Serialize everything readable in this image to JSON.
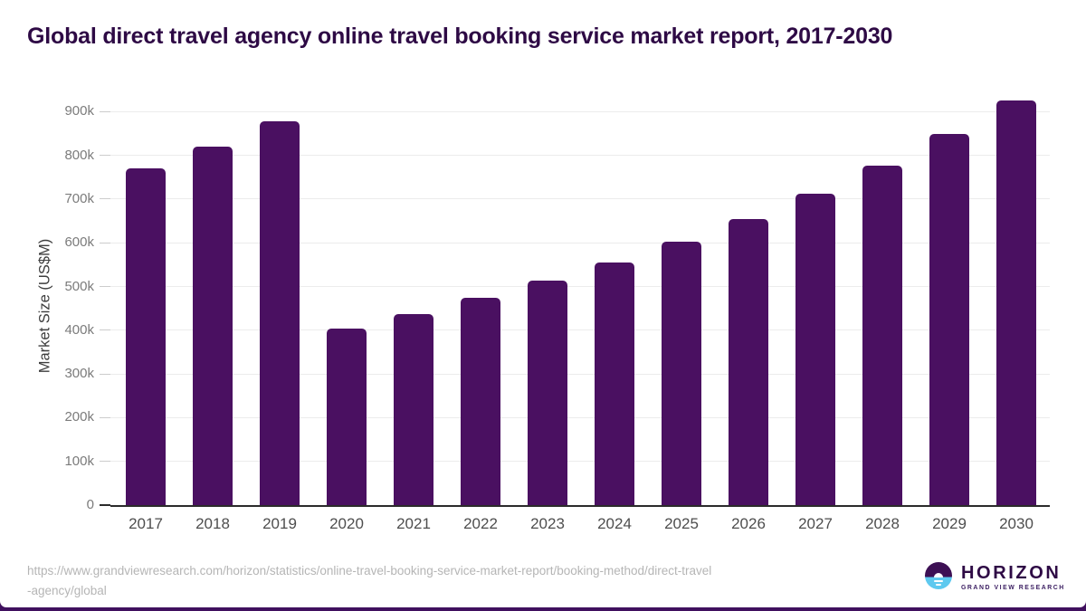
{
  "page": {
    "title": "Global direct travel agency online travel booking service market report, 2017-2030"
  },
  "chart_data": {
    "type": "bar",
    "title": "Global direct travel agency online travel booking service market report, 2017-2030",
    "xlabel": "",
    "ylabel": "Market Size (US$M)",
    "categories": [
      "2017",
      "2018",
      "2019",
      "2020",
      "2021",
      "2022",
      "2023",
      "2024",
      "2025",
      "2026",
      "2027",
      "2028",
      "2029",
      "2030"
    ],
    "values": [
      770000,
      819000,
      878000,
      403000,
      437000,
      474000,
      513000,
      555000,
      603000,
      655000,
      713000,
      777000,
      848000,
      925000
    ],
    "ylim": [
      0,
      938000
    ],
    "ytick_step": 100000,
    "ytick_labels": [
      "0",
      "100k",
      "200k",
      "300k",
      "400k",
      "500k",
      "600k",
      "700k",
      "800k",
      "900k"
    ],
    "grid": "horizontal",
    "legend_position": "none",
    "bar_color": "#4a1061"
  },
  "footer": {
    "source_url_line1": "https://www.grandviewresearch.com/horizon/statistics/online-travel-booking-service-market-report/booking-method/direct-travel",
    "source_url_line2": "-agency/global",
    "logo_name": "HORIZON",
    "logo_subtitle": "GRAND VIEW RESEARCH"
  },
  "colors": {
    "bar": "#4a1061",
    "title_text": "#2e0a45",
    "axis_line": "#2b2b2b",
    "gridline": "#ececec",
    "tick_text": "#7b7b7b",
    "xtick_text": "#4e4e4e",
    "source_text": "#b5b5b5",
    "bottom_bar": "#40105e",
    "logo_blue": "#5ec9ef"
  }
}
